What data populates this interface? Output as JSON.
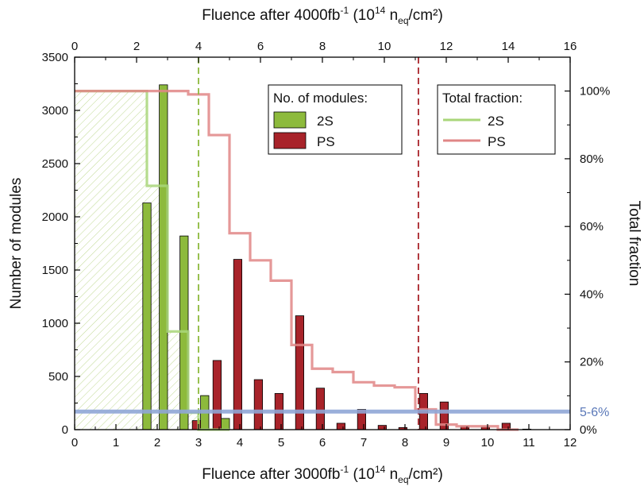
{
  "chart_data": {
    "type": "bar",
    "x_bottom": {
      "label_main": "Fluence after 3000fb",
      "label_sup": "-1",
      "label_units_a": " (10",
      "label_units_sup": "14",
      "label_units_b": " n",
      "label_units_sub": "eq",
      "label_units_c": "/cm²)",
      "range": [
        0,
        12
      ],
      "ticks": [
        "0",
        "1",
        "2",
        "3",
        "4",
        "5",
        "6",
        "7",
        "8",
        "9",
        "10",
        "11",
        "12"
      ]
    },
    "x_top": {
      "label_main": "Fluence after 4000fb",
      "label_sup": "-1",
      "label_units_a": " (10",
      "label_units_sup": "14",
      "label_units_b": " n",
      "label_units_sub": "eq",
      "label_units_c": "/cm²)",
      "range": [
        0,
        16
      ],
      "ticks": [
        "0",
        "2",
        "4",
        "6",
        "8",
        "10",
        "12",
        "14",
        "16"
      ]
    },
    "y_left": {
      "label": "Number of modules",
      "range": [
        0,
        3500
      ],
      "ticks": [
        "0",
        "500",
        "1000",
        "1500",
        "2000",
        "2500",
        "3000",
        "3500"
      ]
    },
    "y_right": {
      "label": "Total fraction",
      "range": [
        0,
        1.1
      ],
      "ticks": [
        {
          "value": 0,
          "label": "0%"
        },
        {
          "value": 0.2,
          "label": "20%"
        },
        {
          "value": 0.4,
          "label": "40%"
        },
        {
          "value": 0.6,
          "label": "60%"
        },
        {
          "value": 0.8,
          "label": "80%"
        },
        {
          "value": 1.0,
          "label": "100%"
        }
      ]
    },
    "legend_modules": {
      "title": "No. of modules:",
      "entries": [
        "2S",
        "PS"
      ]
    },
    "legend_fraction": {
      "title": "Total fraction:",
      "entries": [
        "2S",
        "PS"
      ]
    },
    "series": [
      {
        "name": "2S",
        "color": "#8dba3c",
        "bars": [
          {
            "x": 1.75,
            "count": 2130
          },
          {
            "x": 2.15,
            "count": 3240
          },
          {
            "x": 2.65,
            "count": 1820
          },
          {
            "x": 3.15,
            "count": 320
          },
          {
            "x": 3.65,
            "count": 105
          }
        ],
        "fraction_steps": [
          {
            "x0": 0,
            "x1": 1.75,
            "f": 1.0
          },
          {
            "x0": 1.75,
            "x1": 2.25,
            "f": 0.72
          },
          {
            "x0": 2.25,
            "x1": 2.75,
            "f": 0.29
          },
          {
            "x0": 2.75,
            "x1": 3.0,
            "f": 0.05
          },
          {
            "x0": 3.0,
            "x1": 3.75,
            "f": 0.0
          }
        ]
      },
      {
        "name": "PS",
        "color": "#a8232a",
        "bars": [
          {
            "x": 2.95,
            "count": 85
          },
          {
            "x": 3.45,
            "count": 650
          },
          {
            "x": 3.95,
            "count": 1600
          },
          {
            "x": 4.45,
            "count": 470
          },
          {
            "x": 4.95,
            "count": 340
          },
          {
            "x": 5.45,
            "count": 1070
          },
          {
            "x": 5.95,
            "count": 390
          },
          {
            "x": 6.45,
            "count": 60
          },
          {
            "x": 6.95,
            "count": 190
          },
          {
            "x": 7.45,
            "count": 40
          },
          {
            "x": 7.95,
            "count": 20
          },
          {
            "x": 8.45,
            "count": 340
          },
          {
            "x": 8.95,
            "count": 260
          },
          {
            "x": 9.45,
            "count": 30
          },
          {
            "x": 9.95,
            "count": 25
          },
          {
            "x": 10.45,
            "count": 60
          },
          {
            "x": 10.95,
            "count": 5
          }
        ],
        "fraction_steps": [
          {
            "x0": 0,
            "x1": 2.75,
            "f": 1.0
          },
          {
            "x0": 2.75,
            "x1": 3.25,
            "f": 0.99
          },
          {
            "x0": 3.25,
            "x1": 3.75,
            "f": 0.87
          },
          {
            "x0": 3.75,
            "x1": 4.25,
            "f": 0.58
          },
          {
            "x0": 4.25,
            "x1": 4.75,
            "f": 0.5
          },
          {
            "x0": 4.75,
            "x1": 5.25,
            "f": 0.44
          },
          {
            "x0": 5.25,
            "x1": 5.75,
            "f": 0.25
          },
          {
            "x0": 5.75,
            "x1": 6.25,
            "f": 0.18
          },
          {
            "x0": 6.25,
            "x1": 6.75,
            "f": 0.17
          },
          {
            "x0": 6.75,
            "x1": 7.25,
            "f": 0.14
          },
          {
            "x0": 7.25,
            "x1": 7.75,
            "f": 0.13
          },
          {
            "x0": 7.75,
            "x1": 8.25,
            "f": 0.125
          },
          {
            "x0": 8.25,
            "x1": 8.75,
            "f": 0.06
          },
          {
            "x0": 8.75,
            "x1": 9.25,
            "f": 0.015
          },
          {
            "x0": 9.25,
            "x1": 9.75,
            "f": 0.01
          },
          {
            "x0": 9.75,
            "x1": 10.25,
            "f": 0.01
          },
          {
            "x0": 10.25,
            "x1": 10.75,
            "f": 0.0
          }
        ]
      }
    ],
    "vertical_lines": [
      {
        "x_top": 4.0,
        "color": "#8dba3c",
        "style": "dashed"
      },
      {
        "x_top": 11.1,
        "color": "#a8232a",
        "style": "dashed"
      }
    ],
    "horizontal_band": {
      "count": 170,
      "label": "5-6%",
      "color": "#8fa6d6"
    },
    "colors": {
      "2S_bar": "#8dba3c",
      "PS_bar": "#a8232a",
      "2S_line": "#a9d67a",
      "PS_line": "#e08686",
      "hatch": "#8dba3c"
    }
  }
}
